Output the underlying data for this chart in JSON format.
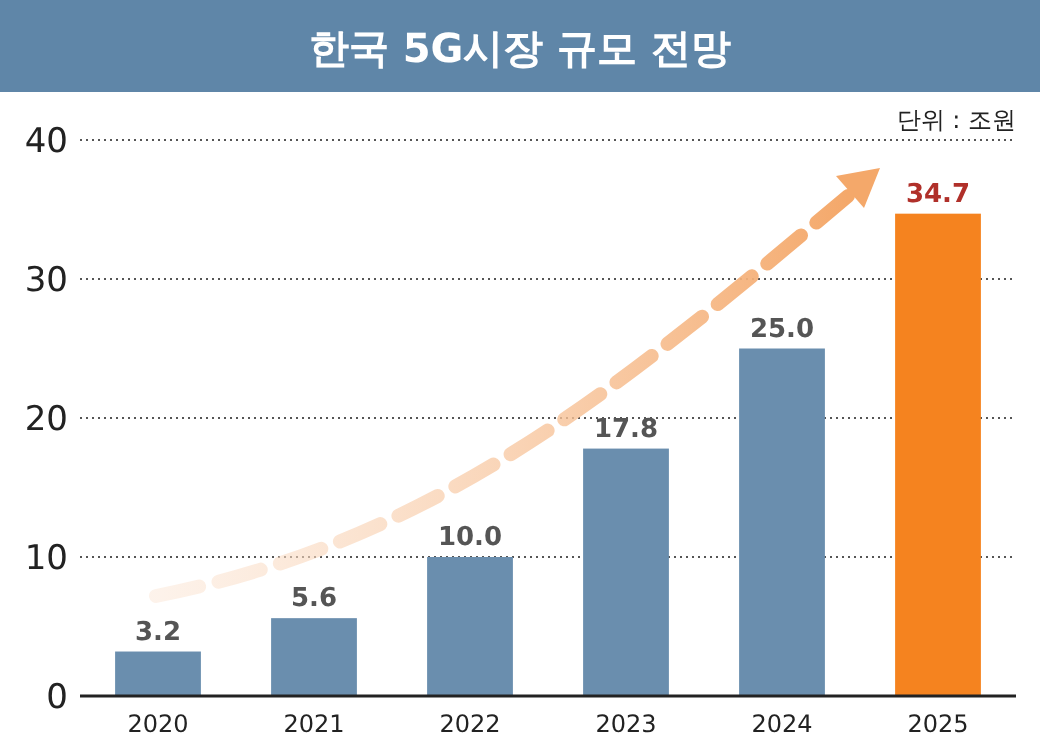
{
  "chart_data": {
    "type": "bar",
    "title": "한국 5G시장 규모 전망",
    "annotations": [
      "단위 : 조원"
    ],
    "categories": [
      "2020",
      "2021",
      "2022",
      "2023",
      "2024",
      "2025"
    ],
    "values": [
      3.2,
      5.6,
      10.0,
      17.8,
      25.0,
      34.7
    ],
    "value_labels": [
      "3.2",
      "5.6",
      "10.0",
      "17.8",
      "25.0",
      "34.7"
    ],
    "colors": [
      "#6a8eae",
      "#6a8eae",
      "#6a8eae",
      "#6a8eae",
      "#6a8eae",
      "#f5831f"
    ],
    "ylim": [
      0,
      40
    ],
    "yticks": [
      0,
      10,
      20,
      30,
      40
    ],
    "grid": "y"
  }
}
